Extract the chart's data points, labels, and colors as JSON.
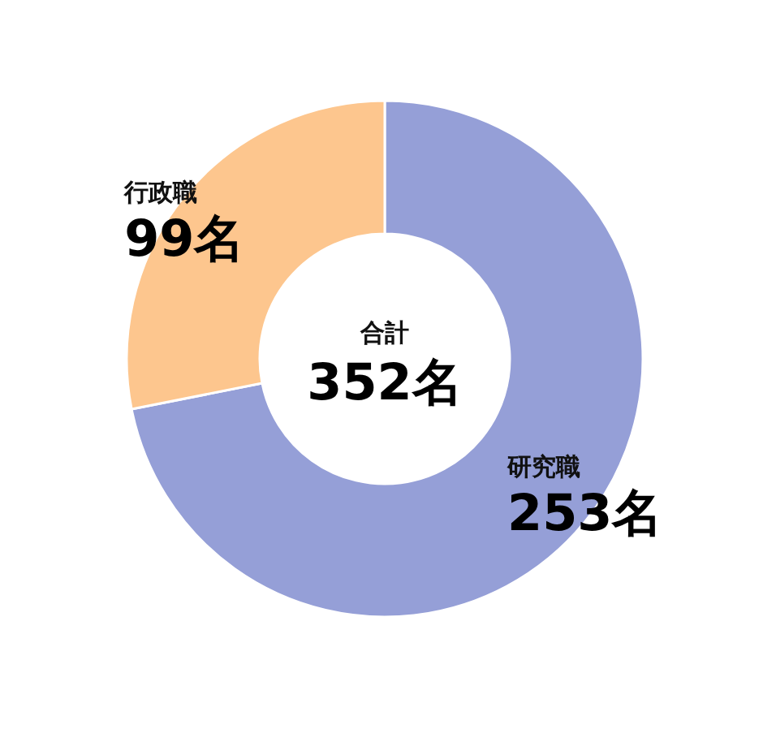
{
  "chart_data": {
    "type": "donut",
    "categories": [
      "研究職",
      "行政職"
    ],
    "values": [
      253,
      99
    ],
    "colors": [
      "#959fd7",
      "#fdc68e"
    ],
    "value_labels": [
      "253名",
      "99名"
    ],
    "annotations": [
      "合計",
      "352名"
    ]
  }
}
